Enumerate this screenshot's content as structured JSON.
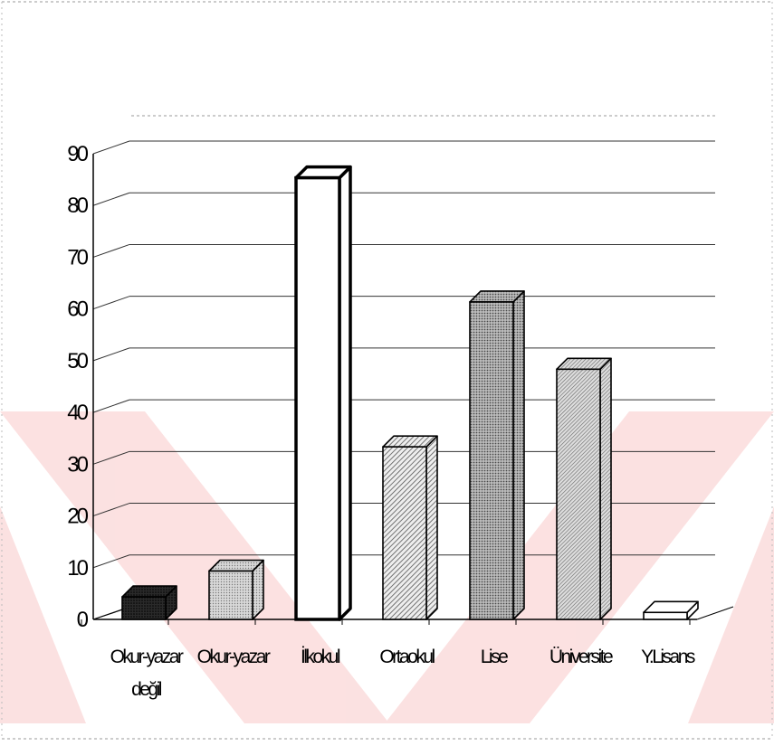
{
  "chart_data": {
    "type": "bar",
    "title": "",
    "xlabel": "",
    "ylabel": "",
    "categories": [
      "Okur-yazar değil",
      "Okur-yazar",
      "İlkokul",
      "Ortaokul",
      "Lise",
      "Üniversite",
      "Y.Lisans"
    ],
    "category_lines": [
      [
        "Okur-yazar",
        "değil"
      ],
      [
        "Okur-yazar"
      ],
      [
        "İlkokul"
      ],
      [
        "Ortaokul"
      ],
      [
        "Lise"
      ],
      [
        "Üniversite"
      ],
      [
        "Y.Lisans"
      ]
    ],
    "values": [
      4,
      9,
      85,
      33,
      61,
      48,
      1
    ],
    "ylim": [
      0,
      90
    ],
    "yticks": [
      0,
      10,
      20,
      30,
      40,
      50,
      60,
      70,
      80,
      90
    ],
    "grid": true,
    "legend": "none",
    "bar_fills": [
      "dark-dots",
      "light-dots",
      "white",
      "diagonal-hatch",
      "grid-dots",
      "diagonal-hatch-fine",
      "white"
    ],
    "colors": {
      "watermark": "#fde8e8",
      "ink": "#000000",
      "grid": "#444444"
    }
  }
}
